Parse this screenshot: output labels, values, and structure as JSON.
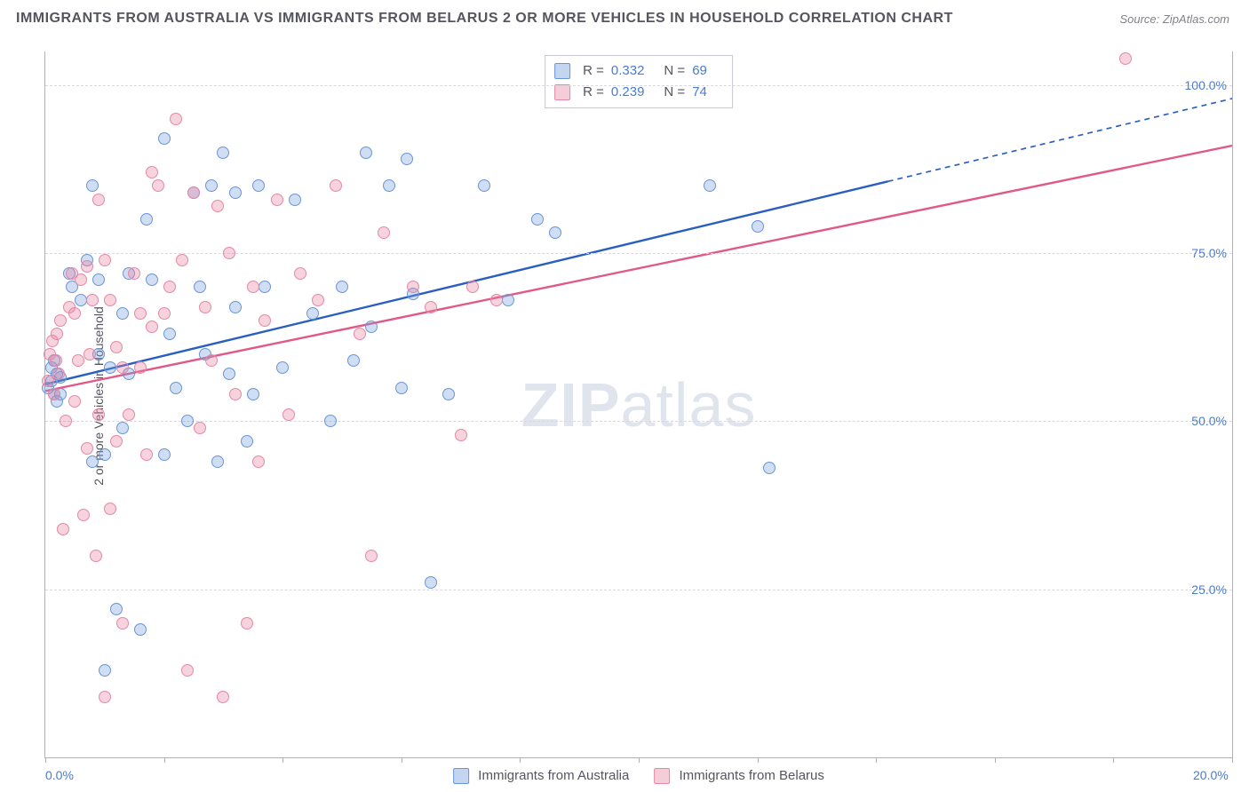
{
  "title": "IMMIGRANTS FROM AUSTRALIA VS IMMIGRANTS FROM BELARUS 2 OR MORE VEHICLES IN HOUSEHOLD CORRELATION CHART",
  "source": "Source: ZipAtlas.com",
  "watermark": {
    "bold": "ZIP",
    "light": "atlas"
  },
  "ylabel": "2 or more Vehicles in Household",
  "chart": {
    "type": "scatter",
    "xlim": [
      0,
      20
    ],
    "ylim": [
      0,
      105
    ],
    "xticks": [
      0,
      2,
      4,
      6,
      8,
      10,
      12,
      14,
      16,
      18,
      20
    ],
    "xlabels_visible": {
      "0": "0.0%",
      "20": "20.0%"
    },
    "yticks": [
      25,
      50,
      75,
      100
    ],
    "ylabels": {
      "25": "25.0%",
      "50": "50.0%",
      "75": "75.0%",
      "100": "100.0%"
    },
    "grid_color": "#d8d8de",
    "axis_color": "#b0b0b8",
    "background_color": "#ffffff",
    "tick_label_color": "#4a7bd0",
    "marker_radius": 7,
    "series": [
      {
        "name": "Immigrants from Australia",
        "fill_color": "rgba(120,160,220,0.35)",
        "stroke_color": "#6a95d6",
        "swatch_fill": "#c3d5ef",
        "swatch_border": "#6a95d6",
        "line_color": "#2a5fc0",
        "line_width": 2.4,
        "line_dash_after_x": 14.2,
        "R": "0.332",
        "N": "69",
        "regression": {
          "y_at_x0": 55.5,
          "y_at_x20": 98.0
        },
        "points": [
          [
            0.05,
            55
          ],
          [
            0.1,
            56
          ],
          [
            0.1,
            58
          ],
          [
            0.15,
            54
          ],
          [
            0.15,
            59
          ],
          [
            0.2,
            53
          ],
          [
            0.2,
            57
          ],
          [
            0.25,
            54
          ],
          [
            0.25,
            56.5
          ],
          [
            0.4,
            72
          ],
          [
            0.45,
            70
          ],
          [
            0.6,
            68
          ],
          [
            0.7,
            74
          ],
          [
            0.8,
            44
          ],
          [
            0.8,
            85
          ],
          [
            0.9,
            60
          ],
          [
            0.9,
            71
          ],
          [
            1.0,
            13
          ],
          [
            1.0,
            45
          ],
          [
            1.1,
            58
          ],
          [
            1.2,
            22
          ],
          [
            1.3,
            49
          ],
          [
            1.3,
            66
          ],
          [
            1.4,
            57
          ],
          [
            1.4,
            72
          ],
          [
            1.6,
            19
          ],
          [
            1.7,
            80
          ],
          [
            1.8,
            71
          ],
          [
            2.0,
            92
          ],
          [
            2.0,
            45
          ],
          [
            2.1,
            63
          ],
          [
            2.2,
            55
          ],
          [
            2.4,
            50
          ],
          [
            2.5,
            84
          ],
          [
            2.6,
            70
          ],
          [
            2.7,
            60
          ],
          [
            2.8,
            85
          ],
          [
            2.9,
            44
          ],
          [
            3.0,
            90
          ],
          [
            3.1,
            57
          ],
          [
            3.2,
            67
          ],
          [
            3.2,
            84
          ],
          [
            3.4,
            47
          ],
          [
            3.5,
            54
          ],
          [
            3.6,
            85
          ],
          [
            3.7,
            70
          ],
          [
            4.0,
            58
          ],
          [
            4.2,
            83
          ],
          [
            4.5,
            66
          ],
          [
            4.8,
            50
          ],
          [
            5.0,
            70
          ],
          [
            5.2,
            59
          ],
          [
            5.4,
            90
          ],
          [
            5.5,
            64
          ],
          [
            5.8,
            85
          ],
          [
            6.0,
            55
          ],
          [
            6.1,
            89
          ],
          [
            6.2,
            69
          ],
          [
            6.5,
            26
          ],
          [
            6.8,
            54
          ],
          [
            7.4,
            85
          ],
          [
            7.8,
            68
          ],
          [
            8.3,
            80
          ],
          [
            8.6,
            78
          ],
          [
            11.2,
            85
          ],
          [
            12.0,
            79
          ],
          [
            12.2,
            43
          ]
        ]
      },
      {
        "name": "Immigrants from Belarus",
        "fill_color": "rgba(232,130,160,0.35)",
        "stroke_color": "#e488a6",
        "swatch_fill": "#f4cdd9",
        "swatch_border": "#e488a6",
        "line_color": "#e05a86",
        "line_width": 2.4,
        "line_dash_after_x": 20,
        "R": "0.239",
        "N": "74",
        "regression": {
          "y_at_x0": 54.5,
          "y_at_x20": 91.0
        },
        "points": [
          [
            0.05,
            56
          ],
          [
            0.08,
            60
          ],
          [
            0.12,
            62
          ],
          [
            0.15,
            54
          ],
          [
            0.18,
            59
          ],
          [
            0.2,
            63
          ],
          [
            0.22,
            57
          ],
          [
            0.25,
            65
          ],
          [
            0.3,
            34
          ],
          [
            0.35,
            50
          ],
          [
            0.4,
            67
          ],
          [
            0.45,
            72
          ],
          [
            0.5,
            53
          ],
          [
            0.5,
            66
          ],
          [
            0.55,
            59
          ],
          [
            0.6,
            71
          ],
          [
            0.65,
            36
          ],
          [
            0.7,
            46
          ],
          [
            0.7,
            73
          ],
          [
            0.75,
            60
          ],
          [
            0.8,
            68
          ],
          [
            0.85,
            30
          ],
          [
            0.9,
            51
          ],
          [
            0.9,
            83
          ],
          [
            1.0,
            9
          ],
          [
            1.0,
            74
          ],
          [
            1.1,
            37
          ],
          [
            1.1,
            68
          ],
          [
            1.2,
            47
          ],
          [
            1.2,
            61
          ],
          [
            1.3,
            58
          ],
          [
            1.3,
            20
          ],
          [
            1.4,
            51
          ],
          [
            1.5,
            72
          ],
          [
            1.6,
            66
          ],
          [
            1.6,
            58
          ],
          [
            1.7,
            45
          ],
          [
            1.8,
            64
          ],
          [
            1.8,
            87
          ],
          [
            1.9,
            85
          ],
          [
            2.0,
            66
          ],
          [
            2.1,
            70
          ],
          [
            2.2,
            95
          ],
          [
            2.3,
            74
          ],
          [
            2.4,
            13
          ],
          [
            2.5,
            84
          ],
          [
            2.6,
            49
          ],
          [
            2.7,
            67
          ],
          [
            2.8,
            59
          ],
          [
            2.9,
            82
          ],
          [
            3.0,
            9
          ],
          [
            3.1,
            75
          ],
          [
            3.2,
            54
          ],
          [
            3.4,
            20
          ],
          [
            3.5,
            70
          ],
          [
            3.6,
            44
          ],
          [
            3.7,
            65
          ],
          [
            3.9,
            83
          ],
          [
            4.1,
            51
          ],
          [
            4.3,
            72
          ],
          [
            4.6,
            68
          ],
          [
            4.9,
            85
          ],
          [
            5.3,
            63
          ],
          [
            5.5,
            30
          ],
          [
            5.7,
            78
          ],
          [
            6.2,
            70
          ],
          [
            6.5,
            67
          ],
          [
            7.0,
            48
          ],
          [
            7.2,
            70
          ],
          [
            7.6,
            68
          ],
          [
            18.2,
            104
          ]
        ]
      }
    ]
  },
  "legend_labels": {
    "R": "R =",
    "N": "N ="
  }
}
